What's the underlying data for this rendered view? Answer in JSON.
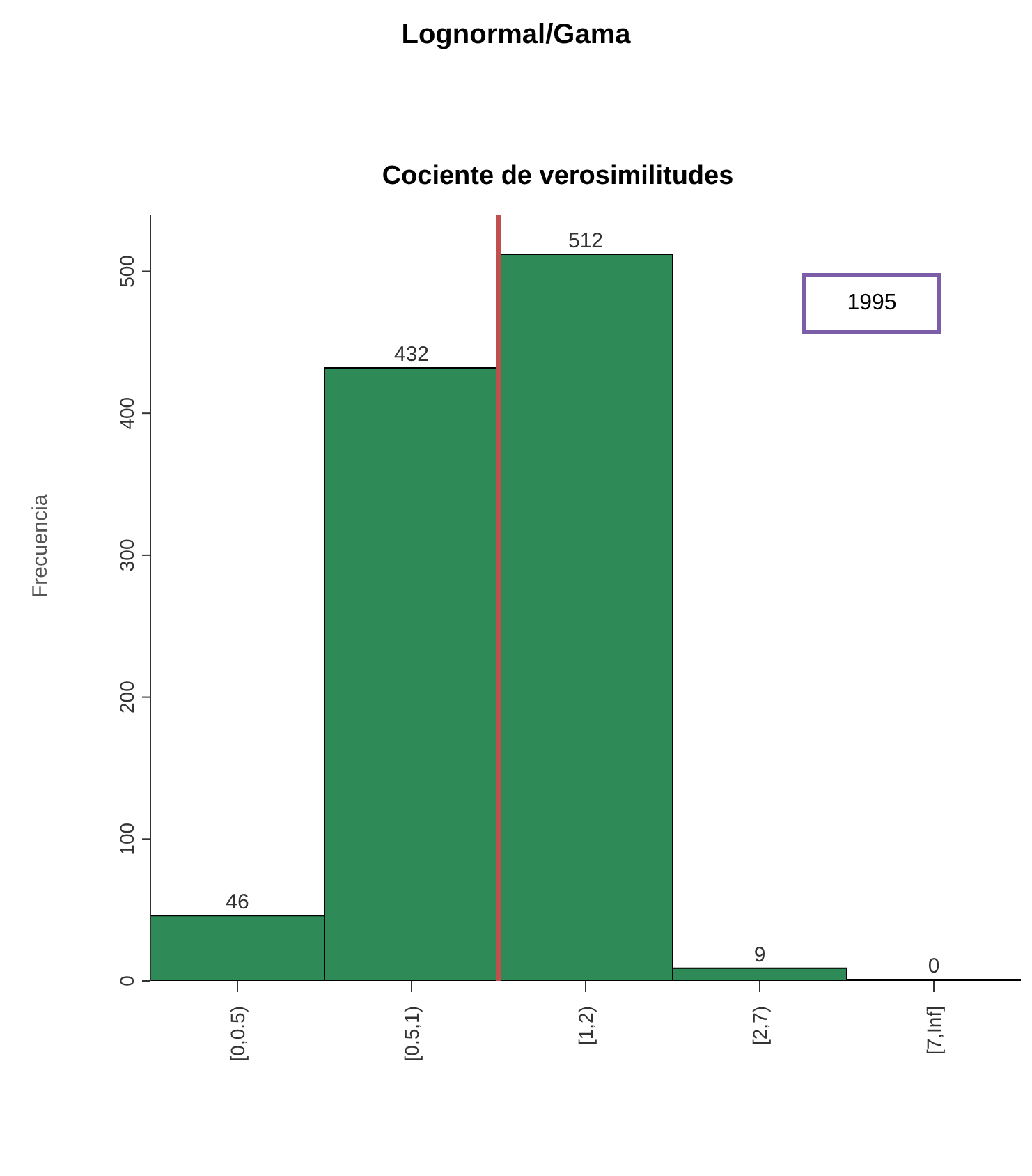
{
  "chart_data": {
    "type": "bar",
    "title": "Lognormal/Gama",
    "subtitle": "Cociente de verosimilitudes",
    "ylabel": "Frecuencia",
    "categories": [
      "[0,0.5)",
      "[0.5,1)",
      "[1,2)",
      "[2,7)",
      "[7,Inf]"
    ],
    "values": [
      46,
      432,
      512,
      9,
      0
    ],
    "color": "#2e8b57",
    "data_labels": true,
    "ylim": [
      0,
      540
    ],
    "yticks": [
      0,
      100,
      200,
      300,
      400,
      500
    ],
    "ref_lines": [
      {
        "axis": "x",
        "value": "[1,2)",
        "color": "#c0504d"
      }
    ],
    "annotations": [
      "1995"
    ]
  }
}
